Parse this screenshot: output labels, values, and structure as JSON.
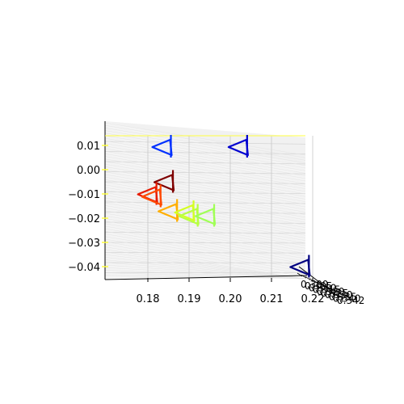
{
  "chart_data": {
    "type": "scatter",
    "view": "3d",
    "marker": "camera-frustum-triangles",
    "x_ticks": [
      "0.18",
      "0.19",
      "0.20",
      "0.21",
      "0.22"
    ],
    "y_ticks": [
      "0.01",
      "0.00",
      "−0.01",
      "−0.02",
      "−0.03",
      "−0.04"
    ],
    "z_ticks": [
      "0.300",
      "0.305",
      "0.310",
      "0.315",
      "0.320",
      "0.325",
      "0.330",
      "0.335",
      "0.340",
      "0.342"
    ],
    "xlim": [
      0.17,
      0.22
    ],
    "ylim": [
      -0.045,
      0.013
    ],
    "grid": true,
    "colormap": "jet",
    "points": [
      {
        "x": 0.185,
        "y": 0.009,
        "color": "#0030ff"
      },
      {
        "x": 0.2035,
        "y": 0.009,
        "color": "#0000d0"
      },
      {
        "x": 0.1855,
        "y": -0.0055,
        "color": "#7f0000"
      },
      {
        "x": 0.1815,
        "y": -0.0105,
        "color": "#e81a00"
      },
      {
        "x": 0.1825,
        "y": -0.0115,
        "color": "#ff4a00"
      },
      {
        "x": 0.1865,
        "y": -0.0175,
        "color": "#ffae00"
      },
      {
        "x": 0.1905,
        "y": -0.018,
        "color": "#d4ff23"
      },
      {
        "x": 0.1915,
        "y": -0.0195,
        "color": "#b7ff40"
      },
      {
        "x": 0.1955,
        "y": -0.0195,
        "color": "#a0ff56"
      },
      {
        "x": 0.2185,
        "y": -0.0405,
        "color": "#000080"
      }
    ]
  }
}
